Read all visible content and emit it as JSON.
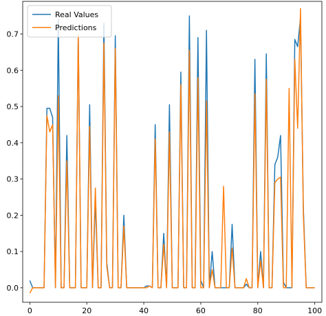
{
  "chart_data": {
    "type": "line",
    "xlim": [
      -2.5,
      102.5
    ],
    "ylim": [
      -0.04,
      0.79
    ],
    "x_ticks": [
      0,
      20,
      40,
      60,
      80,
      100
    ],
    "y_ticks": [
      0.0,
      0.1,
      0.2,
      0.3,
      0.4,
      0.5,
      0.6,
      0.7
    ],
    "grid": false,
    "legend_position": "top-left",
    "series": [
      {
        "name": "Real Values",
        "color": "#1f77b4",
        "values": [
          0.02,
          0.0,
          0.0,
          0.0,
          0.0,
          0.0,
          0.495,
          0.495,
          0.47,
          0.0,
          0.74,
          0.0,
          0.0,
          0.42,
          0.0,
          0.0,
          0.0,
          0.7,
          0.0,
          0.0,
          0.0,
          0.505,
          0.0,
          0.24,
          0.0,
          0.0,
          0.73,
          0.07,
          0.0,
          0.0,
          0.695,
          0.0,
          0.0,
          0.2,
          0.0,
          0.0,
          0.0,
          0.0,
          0.0,
          0.0,
          0.0,
          0.005,
          0.005,
          0.0,
          0.45,
          0.0,
          0.0,
          0.15,
          0.0,
          0.505,
          0.0,
          0.0,
          0.0,
          0.595,
          0.0,
          0.0,
          0.75,
          0.0,
          0.0,
          0.69,
          0.02,
          0.0,
          0.71,
          0.0,
          0.1,
          0.0,
          0.0,
          0.0,
          0.0,
          0.0,
          0.0,
          0.175,
          0.0,
          0.0,
          0.0,
          0.0,
          0.01,
          0.0,
          0.0,
          0.63,
          0.0,
          0.1,
          0.0,
          0.645,
          0.0,
          0.0,
          0.34,
          0.36,
          0.42,
          0.015,
          0.0,
          0.0,
          0.0,
          0.685,
          0.665,
          0.745,
          0.22,
          0.0,
          0.0,
          0.0,
          0.0
        ]
      },
      {
        "name": "Predictions",
        "color": "#ff7f0e",
        "values": [
          -0.015,
          0.0,
          0.0,
          0.0,
          0.0,
          0.0,
          0.475,
          0.43,
          0.45,
          0.0,
          0.53,
          0.0,
          0.0,
          0.35,
          0.0,
          0.0,
          0.0,
          0.7,
          0.0,
          0.0,
          0.0,
          0.445,
          0.0,
          0.275,
          0.0,
          0.0,
          0.675,
          0.06,
          0.0,
          0.0,
          0.66,
          0.0,
          0.0,
          0.17,
          0.0,
          0.0,
          0.0,
          0.0,
          0.0,
          0.0,
          0.0,
          0.0,
          0.005,
          0.0,
          0.41,
          0.0,
          0.0,
          0.12,
          0.0,
          0.43,
          0.0,
          0.0,
          0.0,
          0.56,
          0.0,
          0.0,
          0.655,
          0.0,
          0.0,
          0.58,
          0.0,
          0.0,
          0.515,
          0.0,
          0.05,
          0.0,
          0.0,
          0.0,
          0.28,
          0.0,
          0.0,
          0.11,
          0.0,
          0.0,
          0.0,
          0.0,
          0.025,
          0.0,
          0.0,
          0.535,
          0.0,
          0.075,
          0.0,
          0.575,
          0.0,
          0.0,
          0.29,
          0.3,
          0.305,
          0.0,
          0.0,
          0.55,
          0.0,
          0.63,
          0.44,
          0.77,
          0.2,
          0.0,
          0.0,
          0.0,
          0.0
        ]
      }
    ]
  }
}
